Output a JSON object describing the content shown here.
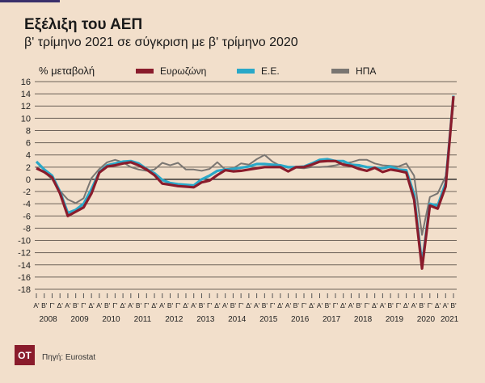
{
  "header": {
    "title": "Εξέλιξη του ΑΕΠ",
    "subtitle": "β' τρίμηνο 2021 σε σύγκριση με β' τρίμηνο 2020"
  },
  "footer": {
    "logo": "OT",
    "source": "Πηγή: Eurostat"
  },
  "chart_data": {
    "type": "line",
    "title": "Εξέλιξη του ΑΕΠ",
    "subtitle": "β' τρίμηνο 2021 σε σύγκριση με β' τρίμηνο 2020",
    "ylabel": "% μεταβολή",
    "xlabel": "",
    "ylim": [
      -18,
      16
    ],
    "yticks": [
      16,
      14,
      12,
      10,
      8,
      6,
      4,
      2,
      0,
      -2,
      -4,
      -6,
      -8,
      -10,
      -12,
      -14,
      -16,
      -18
    ],
    "grid": true,
    "legend_position": "top",
    "quarter_labels": [
      "Α'",
      "Β'",
      "Γ'",
      "Δ'"
    ],
    "years": [
      "2008",
      "2009",
      "2010",
      "2011",
      "2012",
      "2013",
      "2014",
      "2015",
      "2016",
      "2017",
      "2018",
      "2019",
      "2020",
      "2021"
    ],
    "x_start": "2008 Α'",
    "x_end": "2021 Β'",
    "series": [
      {
        "name": "Ευρωζώνη",
        "color": "#8a1c2c",
        "values": [
          1.8,
          1.2,
          0.3,
          -2.3,
          -6.0,
          -5.3,
          -4.6,
          -2.3,
          1.1,
          2.1,
          2.3,
          2.6,
          2.8,
          2.3,
          1.6,
          0.7,
          -0.7,
          -0.9,
          -1.1,
          -1.2,
          -1.3,
          -0.5,
          -0.2,
          0.7,
          1.5,
          1.3,
          1.4,
          1.6,
          1.8,
          2.0,
          2.0,
          2.0,
          1.3,
          2.0,
          2.0,
          2.4,
          2.9,
          3.0,
          3.0,
          2.4,
          2.2,
          1.7,
          1.4,
          1.9,
          1.2,
          1.6,
          1.4,
          1.1,
          -3.3,
          -14.6,
          -4.3,
          -4.8,
          -1.2,
          13.6
        ]
      },
      {
        "name": "Ε.Ε.",
        "color": "#2aa8c8",
        "values": [
          2.9,
          1.6,
          0.6,
          -2.0,
          -5.5,
          -5.0,
          -4.0,
          -1.6,
          1.2,
          2.3,
          2.6,
          2.9,
          3.0,
          2.6,
          1.7,
          1.0,
          -0.1,
          -0.6,
          -0.8,
          -0.9,
          -1.0,
          0.0,
          0.6,
          1.4,
          1.6,
          1.7,
          1.9,
          2.1,
          2.5,
          2.5,
          2.4,
          2.3,
          2.0,
          2.0,
          2.1,
          2.6,
          3.2,
          3.3,
          3.0,
          3.0,
          2.4,
          2.3,
          2.0,
          1.9,
          1.8,
          2.1,
          1.6,
          1.5,
          -2.5,
          -13.9,
          -4.0,
          -4.3,
          -0.6,
          13.7
        ]
      },
      {
        "name": "ΗΠΑ",
        "color": "#7a7672",
        "values": [
          2.0,
          1.2,
          0.0,
          -1.9,
          -3.3,
          -3.9,
          -3.1,
          0.2,
          1.7,
          2.8,
          3.2,
          2.8,
          2.0,
          1.6,
          1.4,
          1.6,
          2.7,
          2.3,
          2.7,
          1.6,
          1.6,
          1.4,
          1.7,
          2.8,
          1.6,
          1.8,
          2.6,
          2.4,
          3.3,
          4.0,
          2.9,
          2.2,
          1.9,
          1.9,
          1.8,
          2.0,
          2.0,
          2.1,
          2.3,
          2.6,
          2.8,
          3.2,
          3.2,
          2.6,
          2.3,
          2.2,
          2.1,
          2.6,
          0.6,
          -9.1,
          -2.9,
          -2.3,
          0.5,
          12.2
        ]
      }
    ]
  }
}
